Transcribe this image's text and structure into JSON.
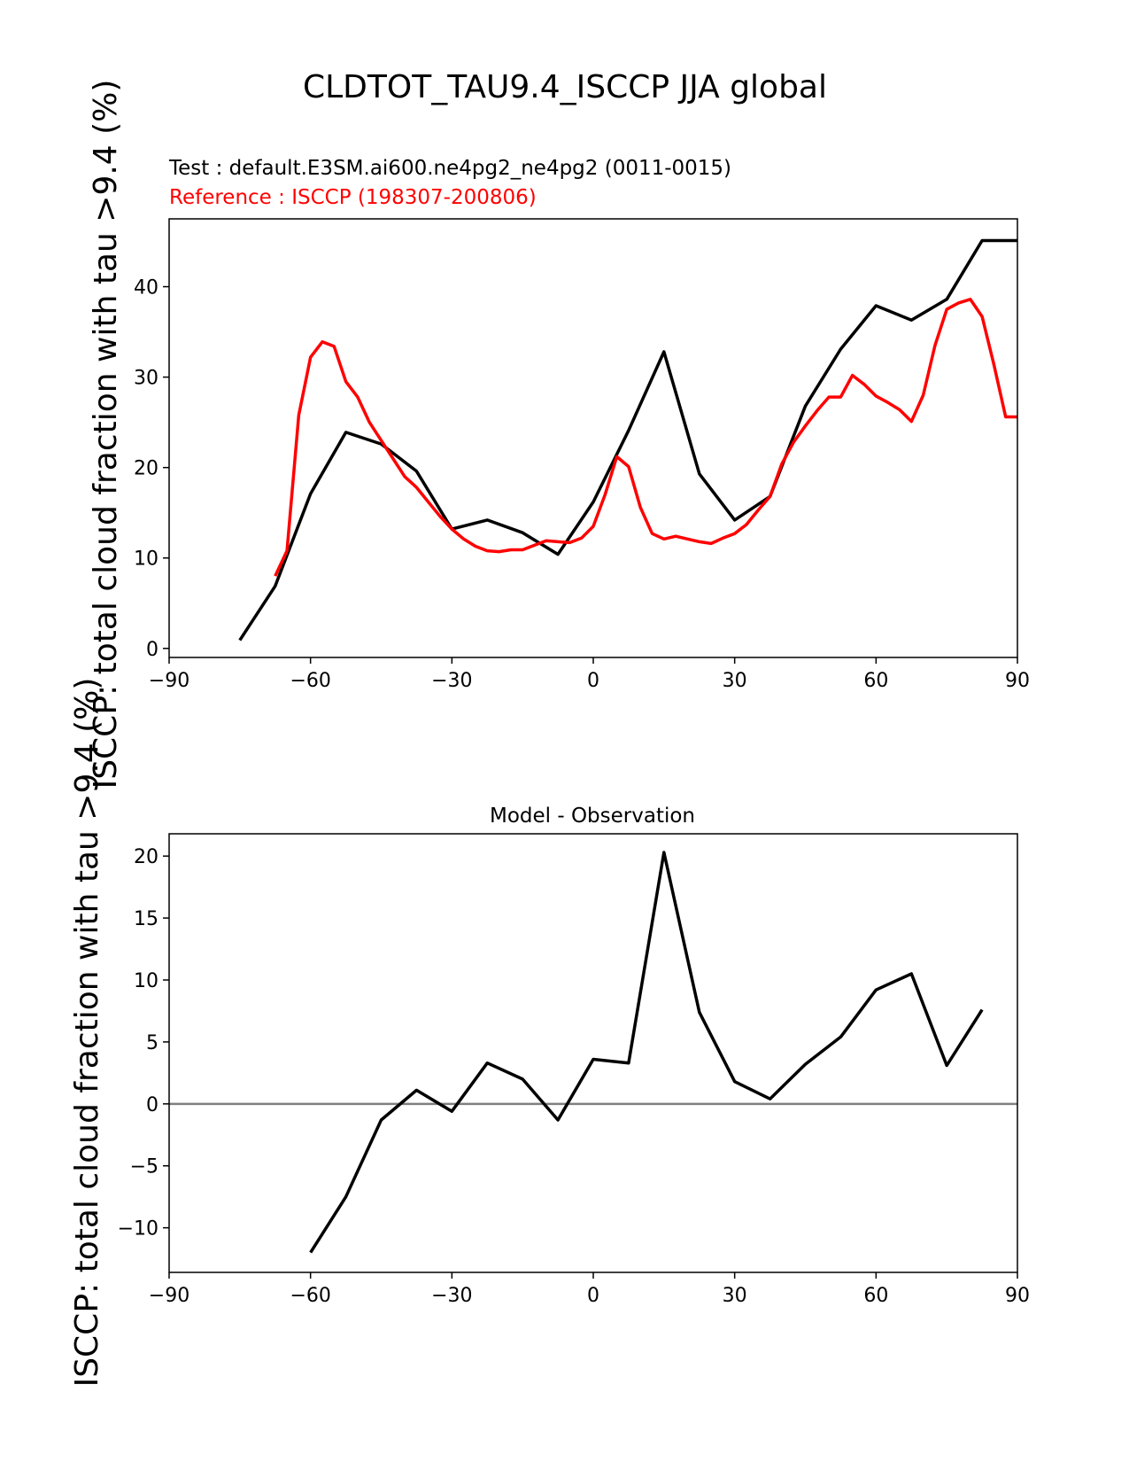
{
  "figure_title": "CLDTOT_TAU9.4_ISCCP JJA global",
  "colors": {
    "test": "#000000",
    "reference": "#ff0000",
    "zero_line": "#808080",
    "axes": "#000000",
    "background": "#ffffff"
  },
  "chart_data": [
    {
      "type": "line",
      "name": "top",
      "test_label": "Test : default.E3SM.ai600.ne4pg2_ne4pg2 (0011-0015)",
      "reference_label": "Reference : ISCCP (198307-200806)",
      "ylabel": "ISCCP: total cloud fraction with tau >9.4 (%)",
      "xlim": [
        -90,
        90
      ],
      "ylim": [
        -1,
        47.5
      ],
      "xticks": [
        -90,
        -60,
        -30,
        0,
        30,
        60,
        90
      ],
      "xtick_labels": [
        "−90",
        "−60",
        "−30",
        "0",
        "30",
        "60",
        "90"
      ],
      "yticks": [
        0,
        10,
        20,
        30,
        40
      ],
      "ytick_labels": [
        "0",
        "10",
        "20",
        "30",
        "40"
      ],
      "series": [
        {
          "name": "Test",
          "color": "#000000",
          "x": [
            -75,
            -67.5,
            -60,
            -52.5,
            -45,
            -37.5,
            -30,
            -22.5,
            -15,
            -7.5,
            0,
            7.5,
            15,
            22.5,
            30,
            37.5,
            45,
            52.5,
            60,
            67.5,
            75,
            82.5,
            90
          ],
          "y": [
            0.9,
            6.9,
            17.1,
            23.9,
            22.6,
            19.6,
            13.2,
            14.2,
            12.8,
            10.4,
            16.2,
            24.1,
            32.8,
            19.3,
            14.2,
            16.8,
            26.8,
            33.1,
            37.9,
            36.3,
            38.6,
            45.1,
            45.1
          ]
        },
        {
          "name": "Reference",
          "color": "#ff0000",
          "x": [
            -67.5,
            -65,
            -62.5,
            -60,
            -57.5,
            -55,
            -52.5,
            -50,
            -47.5,
            -45,
            -42.5,
            -40,
            -37.5,
            -35,
            -32.5,
            -30,
            -27.5,
            -25,
            -22.5,
            -20,
            -17.5,
            -15,
            -12.5,
            -10,
            -7.5,
            -5,
            -2.5,
            0,
            2.5,
            5,
            7.5,
            10,
            12.5,
            15,
            17.5,
            20,
            22.5,
            25,
            27.5,
            30,
            32.5,
            35,
            37.5,
            40,
            42.5,
            45,
            47.5,
            50,
            52.5,
            55,
            57.5,
            60,
            62.5,
            65,
            67.5,
            70,
            72.5,
            75,
            77.5,
            80,
            82.5,
            85,
            87.5,
            90
          ],
          "y": [
            8,
            10.8,
            25.8,
            32.2,
            33.9,
            33.4,
            29.5,
            27.8,
            25,
            23,
            21,
            19,
            17.8,
            16.2,
            14.6,
            13.2,
            12.1,
            11.3,
            10.8,
            10.7,
            10.9,
            10.9,
            11.4,
            11.9,
            11.8,
            11.7,
            12.2,
            13.5,
            17,
            21.2,
            20.1,
            15.6,
            12.7,
            12.1,
            12.4,
            12.1,
            11.8,
            11.6,
            12.2,
            12.7,
            13.7,
            15.3,
            16.8,
            20.4,
            22.8,
            24.6,
            26.3,
            27.8,
            27.8,
            30.2,
            29.2,
            27.9,
            27.2,
            26.4,
            25.1,
            28,
            33.5,
            37.5,
            38.2,
            38.6,
            36.7,
            31.4,
            25.6,
            25.6
          ]
        }
      ]
    },
    {
      "type": "line",
      "name": "bottom",
      "title": "Model - Observation",
      "ylabel": "ISCCP: total cloud fraction with tau >9.4 (%)",
      "xlim": [
        -90,
        90
      ],
      "ylim": [
        -13.6,
        21.8
      ],
      "xticks": [
        -90,
        -60,
        -30,
        0,
        30,
        60,
        90
      ],
      "xtick_labels": [
        "−90",
        "−60",
        "−30",
        "0",
        "30",
        "60",
        "90"
      ],
      "yticks": [
        -10,
        -5,
        0,
        5,
        10,
        15,
        20
      ],
      "ytick_labels": [
        "−10",
        "−5",
        "0",
        "5",
        "10",
        "15",
        "20"
      ],
      "zero_line": 0,
      "series": [
        {
          "name": "Model - Observation",
          "color": "#000000",
          "x": [
            -60,
            -52.5,
            -45,
            -37.5,
            -30,
            -22.5,
            -15,
            -7.5,
            0,
            7.5,
            15,
            22.5,
            30,
            37.5,
            45,
            52.5,
            60,
            67.5,
            75,
            82.5
          ],
          "y": [
            -12.0,
            -7.5,
            -1.3,
            1.1,
            -0.6,
            3.3,
            2.0,
            -1.3,
            3.6,
            3.3,
            20.3,
            7.4,
            1.8,
            0.4,
            3.2,
            5.4,
            9.2,
            10.5,
            3.1,
            7.6
          ]
        }
      ]
    }
  ]
}
